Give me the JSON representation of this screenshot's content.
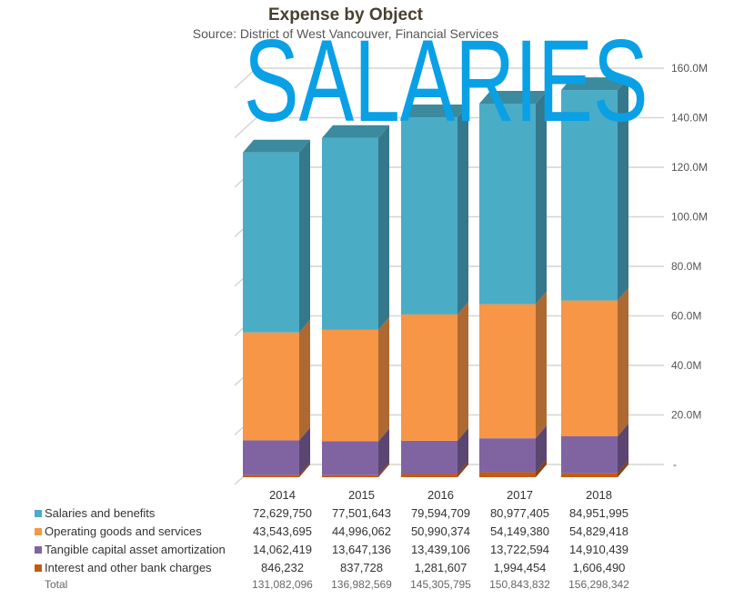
{
  "chart_data": {
    "type": "stacked-bar-3d",
    "title": "Expense by Object",
    "subtitle": "Source: District of West Vancouver, Financial Services",
    "overlay_text": "SALARIES",
    "categories": [
      "2014",
      "2015",
      "2016",
      "2017",
      "2018"
    ],
    "ylim": [
      0,
      160000000
    ],
    "y_ticks": [
      "-",
      "20.0M",
      "40.0M",
      "60.0M",
      "80.0M",
      "100.0M",
      "120.0M",
      "140.0M",
      "160.0M"
    ],
    "grid": true,
    "series": [
      {
        "name": "Interest and other bank charges",
        "color": "#C55A11",
        "values": [
          846232,
          837728,
          1281607,
          1994454,
          1606490
        ],
        "labels": [
          "846,232",
          "837,728",
          "1,281,607",
          "1,994,454",
          "1,606,490"
        ]
      },
      {
        "name": "Tangible capital asset amortization",
        "color": "#8064A2",
        "values": [
          14062419,
          13647136,
          13439106,
          13722594,
          14910439
        ],
        "labels": [
          "14,062,419",
          "13,647,136",
          "13,439,106",
          "13,722,594",
          "14,910,439"
        ]
      },
      {
        "name": "Operating goods and services",
        "color": "#F79646",
        "values": [
          43543695,
          44996062,
          50990374,
          54149380,
          54829418
        ],
        "labels": [
          "43,543,695",
          "44,996,062",
          "50,990,374",
          "54,149,380",
          "54,829,418"
        ]
      },
      {
        "name": "Salaries and benefits",
        "color": "#4BACC6",
        "values": [
          72629750,
          77501643,
          79594709,
          80977405,
          84951995
        ],
        "labels": [
          "72,629,750",
          "77,501,643",
          "79,594,709",
          "80,977,405",
          "84,951,995"
        ]
      }
    ],
    "total": {
      "name": "Total",
      "labels": [
        "131,082,096",
        "136,982,569",
        "145,305,795",
        "150,843,832",
        "156,298,342"
      ]
    }
  }
}
